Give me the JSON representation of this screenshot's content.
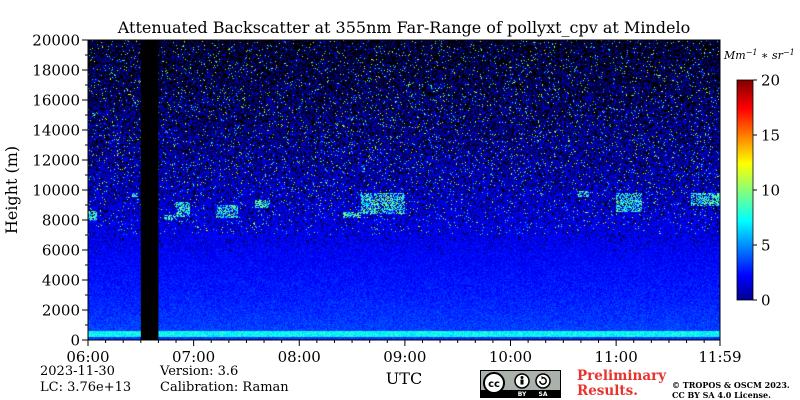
{
  "chart_data": {
    "type": "heatmap",
    "title": "Attenuated Backscatter at 355nm Far-Range of pollyxt_cpv at Mindelo",
    "xlabel": "UTC",
    "ylabel": "Height (m)",
    "xlim": [
      "06:00",
      "11:59"
    ],
    "ylim": [
      0,
      20000
    ],
    "x_ticks": [
      "06:00",
      "07:00",
      "08:00",
      "09:00",
      "10:00",
      "11:00",
      "11:59"
    ],
    "y_ticks": [
      0,
      2000,
      4000,
      6000,
      8000,
      10000,
      12000,
      14000,
      16000,
      18000,
      20000
    ],
    "colorbar": {
      "label": "Mm^-1 * sr^-1",
      "range": [
        0,
        20
      ],
      "ticks": [
        0,
        5,
        10,
        15,
        20
      ],
      "colormap": "jet"
    },
    "features": {
      "no_data_intervals": [
        [
          "06:30",
          "06:40"
        ]
      ],
      "surface_layer_height": 600,
      "cloud_layers": [
        {
          "start": "06:00",
          "end": "06:05",
          "base": 7900,
          "top": 8600
        },
        {
          "start": "06:25",
          "end": "06:28",
          "base": 9500,
          "top": 9800
        },
        {
          "start": "06:43",
          "end": "06:50",
          "base": 8000,
          "top": 8300
        },
        {
          "start": "06:50",
          "end": "06:58",
          "base": 8200,
          "top": 9200
        },
        {
          "start": "07:13",
          "end": "07:25",
          "base": 8100,
          "top": 9000
        },
        {
          "start": "07:35",
          "end": "07:43",
          "base": 8800,
          "top": 9300
        },
        {
          "start": "08:25",
          "end": "08:35",
          "base": 8100,
          "top": 8500
        },
        {
          "start": "08:35",
          "end": "09:00",
          "base": 8400,
          "top": 9800
        },
        {
          "start": "10:38",
          "end": "10:45",
          "base": 9500,
          "top": 9900
        },
        {
          "start": "11:00",
          "end": "11:15",
          "base": 8500,
          "top": 9800
        },
        {
          "start": "11:43",
          "end": "11:59",
          "base": 8900,
          "top": 9800
        }
      ]
    }
  },
  "footer": {
    "date": "2023-11-30",
    "lc": "LC: 3.76e+13",
    "version": "Version: 3.6",
    "calibration": "Calibration: Raman",
    "preliminary_line1": "Preliminary",
    "preliminary_line2": "Results.",
    "copyright_line1": "© TROPOS & OSCM 2023.",
    "copyright_line2": "CC BY SA 4.0 License.",
    "license_badge": "cc-by-sa"
  },
  "colors": {
    "no_data": "#000000",
    "preliminary": "#e8322d"
  }
}
